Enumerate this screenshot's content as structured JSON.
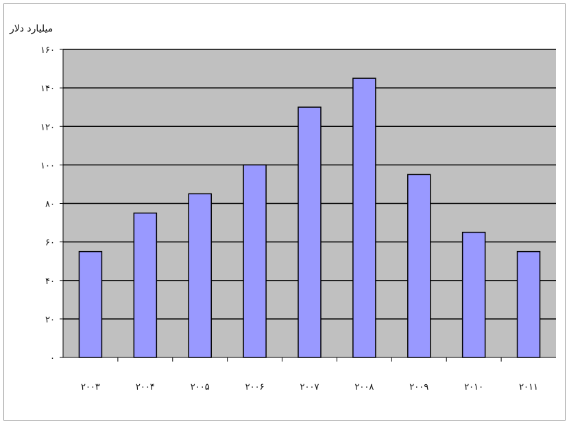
{
  "chart_data": {
    "type": "bar",
    "ylabel": "میلیارد دلار",
    "xlabel": "",
    "title": "",
    "categories": [
      "۲۰۰۳",
      "۲۰۰۴",
      "۲۰۰۵",
      "۲۰۰۶",
      "۲۰۰۷",
      "۲۰۰۸",
      "۲۰۰۹",
      "۲۰۱۰",
      "۲۰۱۱"
    ],
    "values": [
      55,
      75,
      85,
      100,
      130,
      145,
      95,
      65,
      55
    ],
    "ylim": [
      0,
      160
    ],
    "yticks": [
      0,
      20,
      40,
      60,
      80,
      100,
      120,
      140,
      160
    ],
    "ytick_labels": [
      "۰",
      "۲۰",
      "۴۰",
      "۶۰",
      "۸۰",
      "۱۰۰",
      "۱۲۰",
      "۱۴۰",
      "۱۶۰"
    ],
    "grid": true,
    "legend": "none",
    "colors": {
      "bar_fill": "#9999ff",
      "bar_stroke": "#000000",
      "plot_bg": "#c0c0c0",
      "gridline": "#000000"
    }
  }
}
